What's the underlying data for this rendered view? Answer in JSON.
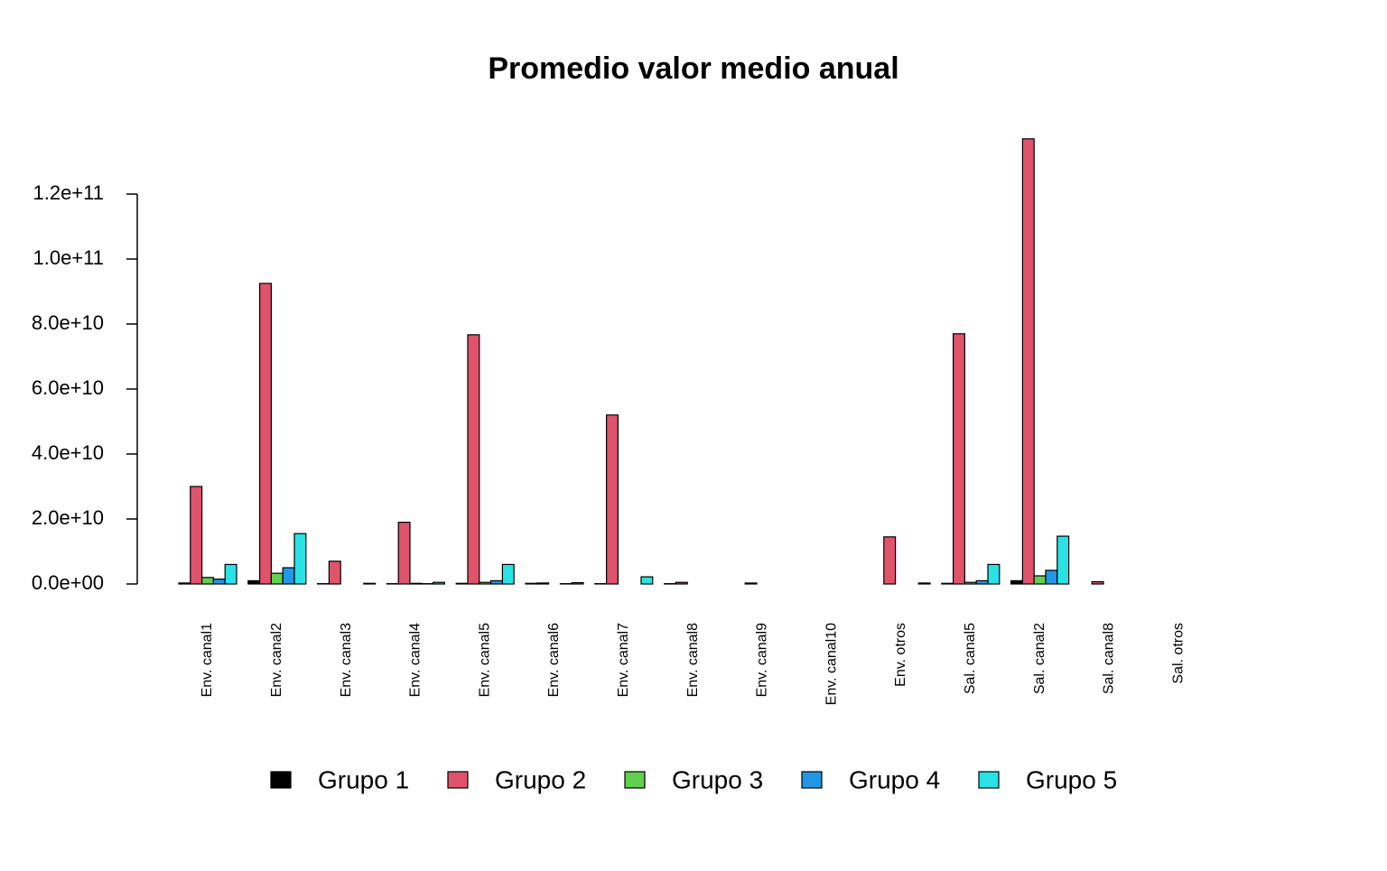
{
  "chart_data": {
    "type": "bar",
    "title": "Promedio valor medio anual",
    "categories": [
      "Env. canal1",
      "Env. canal2",
      "Env. canal3",
      "Env. canal4",
      "Env. canal5",
      "Env. canal6",
      "Env. canal7",
      "Env. canal8",
      "Env. canal9",
      "Env. canal10",
      "Env. otros",
      "Sal. canal5",
      "Sal. canal2",
      "Sal. canal8",
      "Sal. otros"
    ],
    "series": [
      {
        "name": "Grupo 1",
        "color": "#000000",
        "values": [
          300000000,
          1000000000,
          100000000,
          100000000,
          200000000,
          200000000,
          100000000,
          100000000,
          0,
          0,
          0,
          200000000,
          1000000000,
          0,
          0
        ]
      },
      {
        "name": "Grupo 2",
        "color": "#df536b",
        "values": [
          30000000000,
          92500000000,
          7000000000,
          19000000000,
          76700000000,
          300000000,
          52000000000,
          500000000,
          300000000,
          0,
          14500000000,
          77000000000,
          137000000000,
          700000000,
          0
        ]
      },
      {
        "name": "Grupo 3",
        "color": "#61d04f",
        "values": [
          2000000000,
          3300000000,
          0,
          200000000,
          500000000,
          0,
          0,
          0,
          0,
          0,
          0,
          500000000,
          2500000000,
          0,
          0
        ]
      },
      {
        "name": "Grupo 4",
        "color": "#2297e6",
        "values": [
          1500000000,
          5000000000,
          0,
          100000000,
          1000000000,
          100000000,
          0,
          0,
          0,
          0,
          0,
          1000000000,
          4200000000,
          0,
          0
        ]
      },
      {
        "name": "Grupo 5",
        "color": "#28e2e5",
        "values": [
          6000000000,
          15500000000,
          200000000,
          500000000,
          6000000000,
          400000000,
          2200000000,
          0,
          0,
          0,
          300000000,
          6000000000,
          14700000000,
          0,
          0
        ]
      }
    ],
    "ylim": [
      0,
      140000000000
    ],
    "yticks": [
      {
        "value": 0,
        "label": "0.0e+00"
      },
      {
        "value": 20000000000,
        "label": "2.0e+10"
      },
      {
        "value": 40000000000,
        "label": "4.0e+10"
      },
      {
        "value": 60000000000,
        "label": "6.0e+10"
      },
      {
        "value": 80000000000,
        "label": "8.0e+10"
      },
      {
        "value": 100000000000,
        "label": "1.0e+11"
      },
      {
        "value": 120000000000,
        "label": "1.2e+11"
      }
    ],
    "legend": "bottom"
  }
}
